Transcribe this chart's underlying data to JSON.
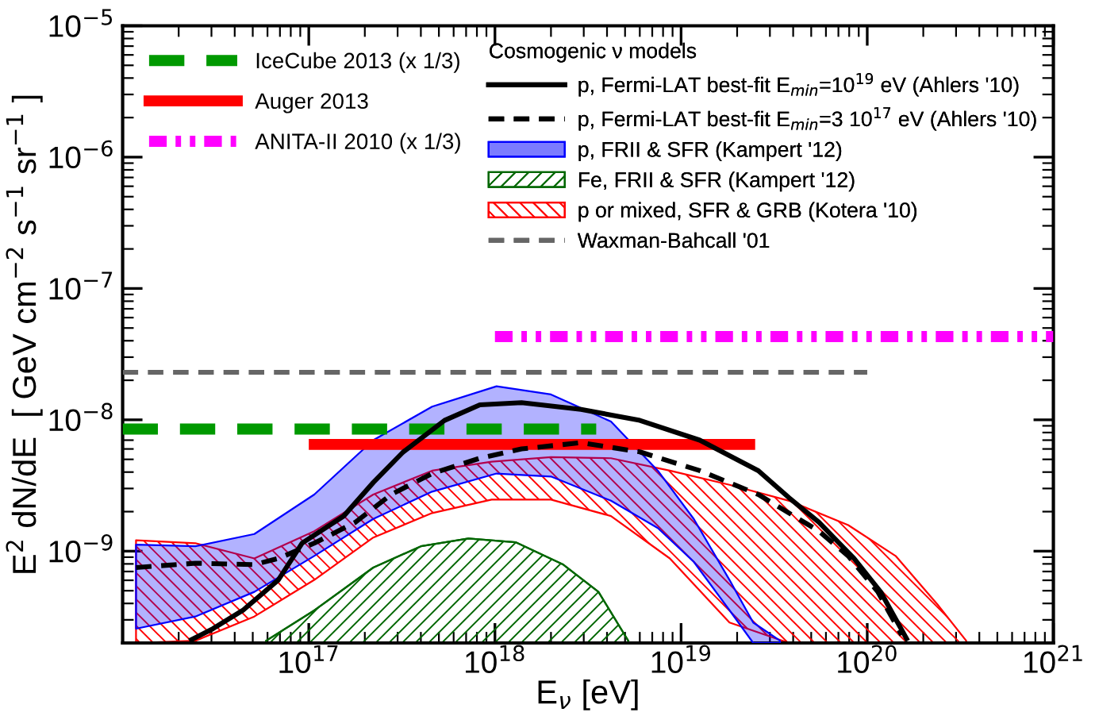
{
  "chart_data": {
    "type": "line",
    "xlabel": "E$_{ν}$ [eV]",
    "ylabel": "E$^{2}$ dN/dE  [ GeV cm$^{−2}$ s$^{−1}$ sr$^{−1}$ ]",
    "legend_title": "Cosmogenic ν models",
    "log": "xy",
    "grid": false,
    "legend": "top",
    "xlim": [
      1e+16,
      1e+21
    ],
    "ylim": [
      2e-10,
      1e-05
    ],
    "xticks": [
      {
        "value": 1e+17,
        "label": "10$^{17}$"
      },
      {
        "value": 1e+18,
        "label": "10$^{18}$"
      },
      {
        "value": 1e+19,
        "label": "10$^{19}$"
      },
      {
        "value": 1e+20,
        "label": "10$^{20}$"
      },
      {
        "value": 1e+21,
        "label": "10$^{21}$"
      }
    ],
    "yticks": [
      {
        "value": 1e-09,
        "label": "10$^{−9}$"
      },
      {
        "value": 1e-08,
        "label": "10$^{−8}$"
      },
      {
        "value": 1e-07,
        "label": "10$^{−7}$"
      },
      {
        "value": 1e-06,
        "label": "10$^{−6}$"
      },
      {
        "value": 1e-05,
        "label": "10$^{−5}$"
      }
    ],
    "series": [
      {
        "name": "IceCube 2013 (x 1/3)",
        "color": "#009900",
        "line_style": "dashed",
        "x": [
          1e+16,
          3.5e+18
        ],
        "values": [
          8.5e-09,
          8.5e-09
        ]
      },
      {
        "name": "Auger 2013",
        "color": "#ff0000",
        "line_style": "solid",
        "x": [
          1e+17,
          2.5e+19
        ],
        "values": [
          6.5e-09,
          6.5e-09
        ]
      },
      {
        "name": "ANITA-II 2010 (x 1/3)",
        "color": "#ff00ff",
        "line_style": "dashdotdot",
        "x": [
          1e+18,
          1e+21
        ],
        "values": [
          4.3e-08,
          4.3e-08
        ]
      },
      {
        "name": "p, Fermi-LAT best-fit E$_{min}$=10$^{19}$ eV (Ahlers '10)",
        "color": "#000000",
        "line_style": "solid",
        "x": [
          2.28e+16,
          3.06e+16,
          4.42e+16,
          6.86e+16,
          9.2e+16,
          1.54e+17,
          2.22e+17,
          3.21e+17,
          5.36e+17,
          8.3e+17,
          1.39e+18,
          2.9e+18,
          6e+18,
          1.26e+19,
          2.6e+19,
          3.8e+19,
          5.5e+19,
          8.5e+19,
          1.18e+20,
          1.65e+20
        ],
        "values": [
          2.08e-10,
          2.57e-10,
          3.54e-10,
          6.04e-10,
          1.15e-09,
          1.85e-09,
          3.33e-09,
          5.68e-09,
          9.9e-09,
          1.3e-08,
          1.35e-08,
          1.2e-08,
          9.9e-09,
          7e-09,
          4.1e-09,
          2.55e-09,
          1.66e-09,
          8.8e-10,
          4.9e-10,
          2.08e-10
        ]
      },
      {
        "name": "p, Fermi-LAT best-fit E$_{min}$=3 10$^{17}$ eV (Ahlers '10)",
        "color": "#000000",
        "line_style": "dashed",
        "x": [
          1.18e+16,
          2.46e+16,
          5.1e+16,
          6.86e+16,
          1.07e+17,
          1.78e+17,
          2.77e+17,
          4.6e+17,
          8.3e+17,
          1.39e+18,
          2.9e+18,
          6e+18,
          1.26e+19,
          2.6e+19,
          5.5e+19,
          7.9e+19,
          1.14e+20,
          1.53e+20
        ],
        "values": [
          7.5e-10,
          8.1e-10,
          7.9e-10,
          8.8e-10,
          1.15e-09,
          1.66e-09,
          2.7e-09,
          3.9e-09,
          5.1e-09,
          6e-09,
          6.7e-09,
          5.7e-09,
          4.1e-09,
          2.7e-09,
          1.42e-09,
          9.2e-10,
          4.9e-10,
          2.3e-10
        ]
      },
      {
        "name": "p, FRII & SFR (Kampert '12)",
        "color": "#0000ff",
        "x": [
          1.18e+16,
          2.46e+16,
          5.1e+16,
          1.07e+17,
          2.22e+17,
          4.6e+17,
          1.02e+18,
          2e+18,
          4.2e+18,
          7.5e+18,
          1.17e+19,
          1.82e+19,
          2.44e+19,
          3.4e+19
        ],
        "lower": [
          2.57e-10,
          3.18e-10,
          4.9e-10,
          9.2e-10,
          1.76e-09,
          2.84e-09,
          3.9e-09,
          3.7e-09,
          2.42e-09,
          1.5e-09,
          8.3e-10,
          3.55e-10,
          2e-10,
          2e-10
        ],
        "upper": [
          1.12e-09,
          1.09e-09,
          1.35e-09,
          2.7e-09,
          7e-09,
          1.26e-08,
          1.8e-08,
          1.56e-08,
          9.7e-09,
          4.1e-09,
          1.76e-09,
          6.04e-10,
          2.86e-10,
          2.08e-10
        ],
        "values": [
          null,
          null,
          null,
          null,
          null,
          null,
          null,
          null,
          null,
          null,
          null,
          null,
          null,
          null
        ]
      },
      {
        "name": "Fe, FRII & SFR (Kampert '12)",
        "type": "area",
        "color": "#006600",
        "x": [
          5.9e+16,
          1.07e+17,
          2.22e+17,
          4e+17,
          7.2e+17,
          1.29e+18,
          2.33e+18,
          3.6e+18,
          5.2e+18
        ],
        "values": [
          2.08e-10,
          3.54e-10,
          7.5e-10,
          1.09e-09,
          1.25e-09,
          1.17e-09,
          7.9e-10,
          4.9e-10,
          2.08e-10
        ]
      },
      {
        "name": "p or mixed, SFR & GRB (Kotera '10)",
        "color": "#ff0000",
        "x": [
          1.18e+16,
          2.46e+16,
          5.1e+16,
          1.07e+17,
          2.22e+17,
          4.6e+17,
          9.6e+17,
          2e+18,
          4.2e+18,
          8.7e+18,
          1.82e+19,
          3.8e+19,
          7.9e+19,
          1.42e+20,
          2.38e+20,
          3.4e+20
        ],
        "lower": [
          2e-10,
          2.08e-10,
          3.18e-10,
          6.04e-10,
          1.27e-09,
          1.95e-09,
          2.47e-09,
          2.47e-09,
          1.85e-09,
          8.8e-10,
          2.86e-10,
          2e-10,
          2e-10,
          2e-10,
          2e-10,
          2e-10
        ],
        "upper": [
          1.21e-09,
          1.15e-09,
          8.8e-10,
          1.42e-09,
          2.7e-09,
          4.1e-09,
          4.8e-09,
          5.2e-09,
          5.1e-09,
          4.1e-09,
          3.2e-09,
          2.42e-09,
          1.58e-09,
          9.2e-10,
          3.94e-10,
          2.08e-10
        ],
        "values": [
          null,
          null,
          null,
          null,
          null,
          null,
          null,
          null,
          null,
          null,
          null,
          null,
          null,
          null,
          null,
          null
        ]
      },
      {
        "name": "Waxman-Bahcall '01",
        "color": "#666666",
        "line_style": "dashed",
        "x": [
          1e+16,
          1e+20
        ],
        "values": [
          2.3e-08,
          2.3e-08
        ]
      }
    ]
  }
}
